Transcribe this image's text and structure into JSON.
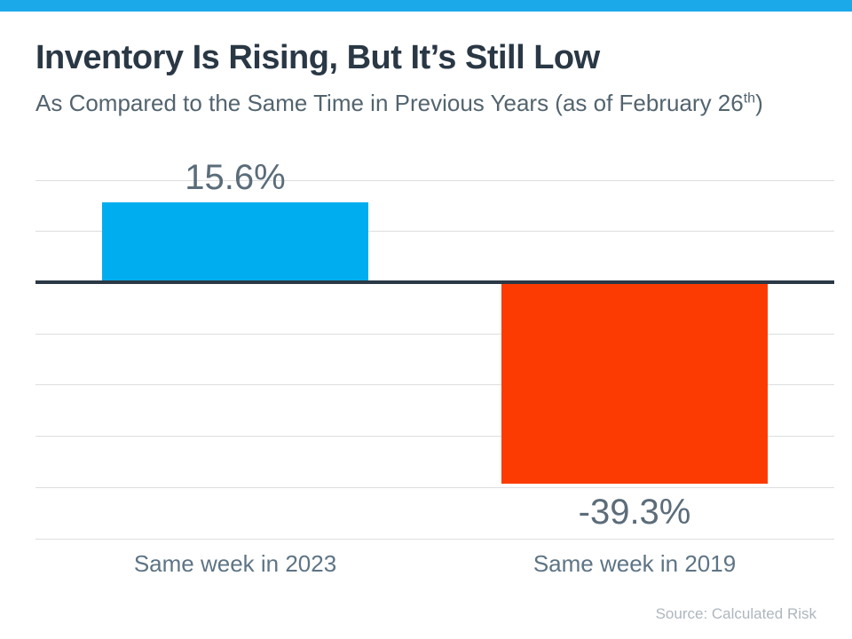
{
  "accent": {
    "bar_color": "#1BA9EA"
  },
  "header": {
    "title": "Inventory Is Rising, But It’s Still Low",
    "subtitle_main": "As Compared to the Same Time in Previous Years (as of February 26",
    "subtitle_superscript": "th",
    "subtitle_suffix": ")"
  },
  "chart_data": {
    "type": "bar",
    "title": "Inventory Is Rising, But It’s Still Low",
    "subtitle": "As Compared to the Same Time in Previous Years (as of February 26th)",
    "categories": [
      "Same week in 2023",
      "Same week in 2019"
    ],
    "values": [
      15.6,
      -39.3
    ],
    "value_labels": [
      "15.6%",
      "-39.3%"
    ],
    "bar_colors": [
      "#00AEEF",
      "#FB3B01"
    ],
    "ylim": [
      -50,
      20
    ],
    "gridline_step": 10,
    "grid": true,
    "legend": false,
    "xlabel": "",
    "ylabel": "",
    "bar_width_fraction": 0.3333,
    "zero_axis_color": "#2B3845",
    "gridline_color": "#DDDEE0"
  },
  "footer": {
    "source": "Source: Calculated Risk"
  }
}
